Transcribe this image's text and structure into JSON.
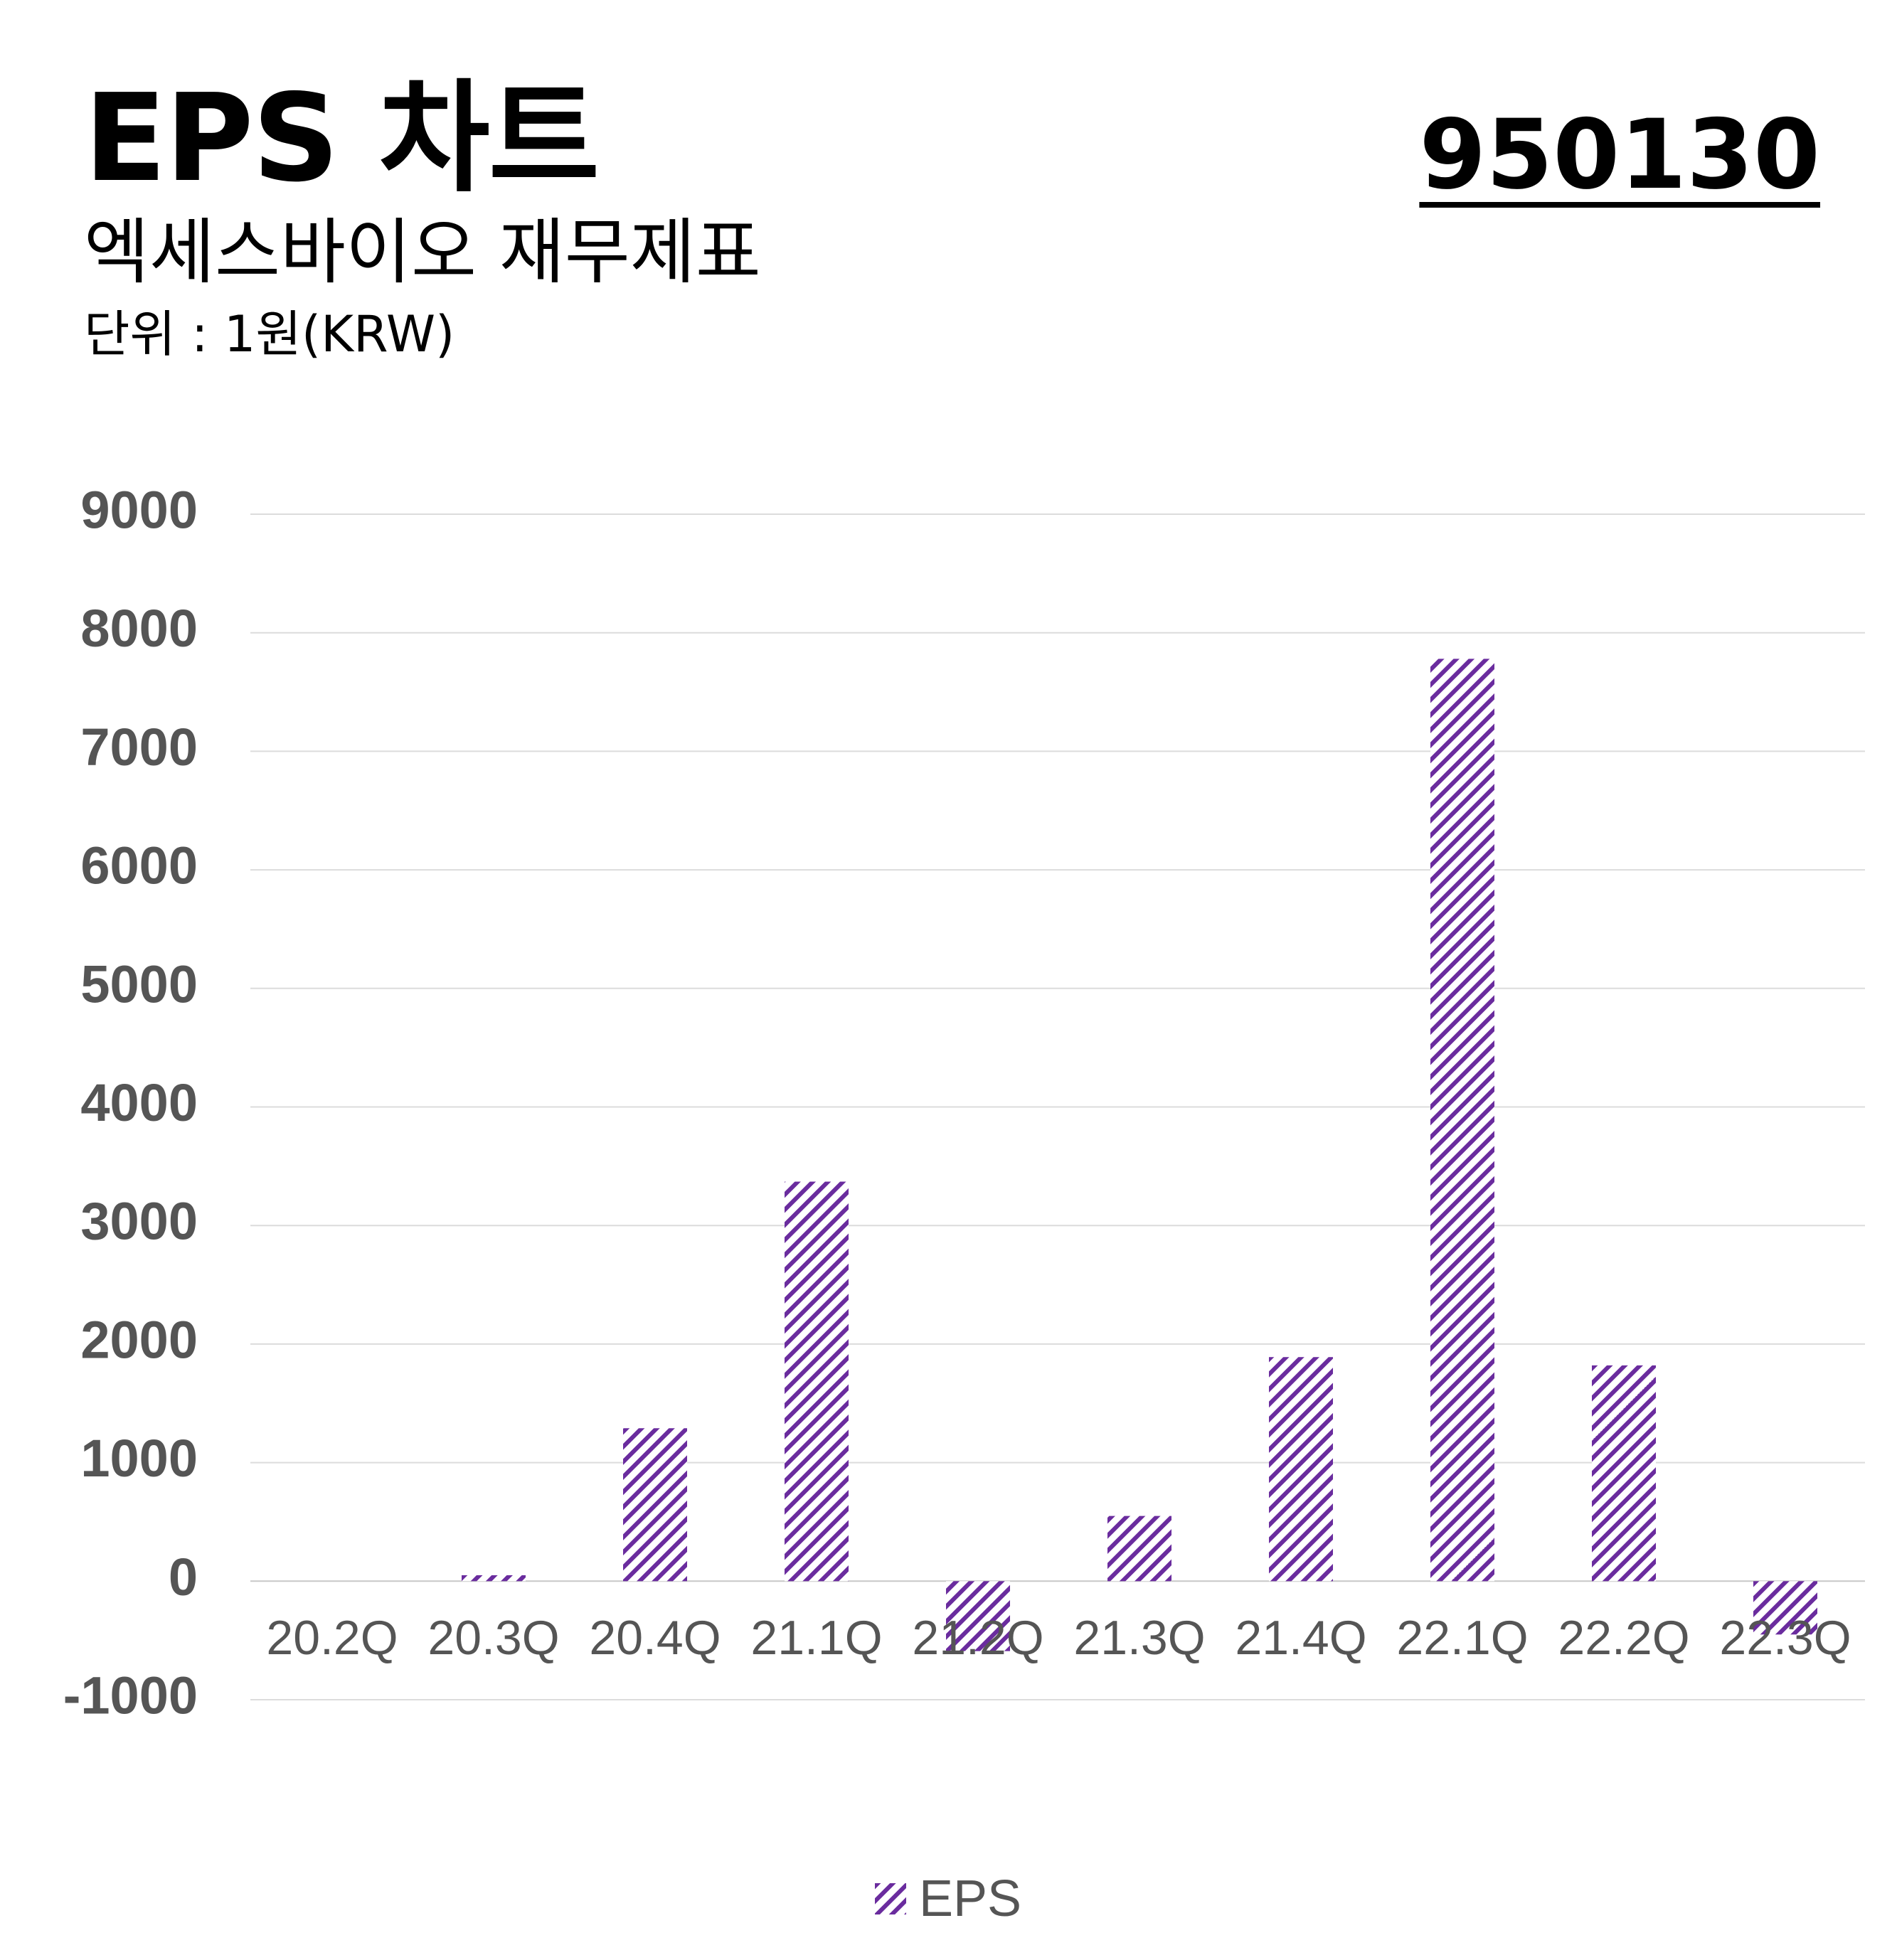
{
  "header": {
    "title": "EPS 차트",
    "stock_code": "950130",
    "subtitle": "엑세스바이오 재무제표",
    "unit": "단위 : 1원(KRW)"
  },
  "chart_data": {
    "type": "bar",
    "categories": [
      "20.2Q",
      "20.3Q",
      "20.4Q",
      "21.1Q",
      "21.2Q",
      "21.3Q",
      "21.4Q",
      "22.1Q",
      "22.2Q",
      "22.3Q"
    ],
    "series": [
      {
        "name": "EPS",
        "values": [
          0,
          50,
          1290,
          3370,
          -590,
          550,
          1890,
          7780,
          1820,
          -450
        ]
      }
    ],
    "ylim": [
      -1000,
      9000
    ],
    "yticks": [
      9000,
      8000,
      7000,
      6000,
      5000,
      4000,
      3000,
      2000,
      1000,
      0,
      -1000
    ],
    "grid": true,
    "legend_position": "bottom-center",
    "bar_color": "#6a2c9e",
    "bar_pattern": "diagonal-hatch"
  }
}
